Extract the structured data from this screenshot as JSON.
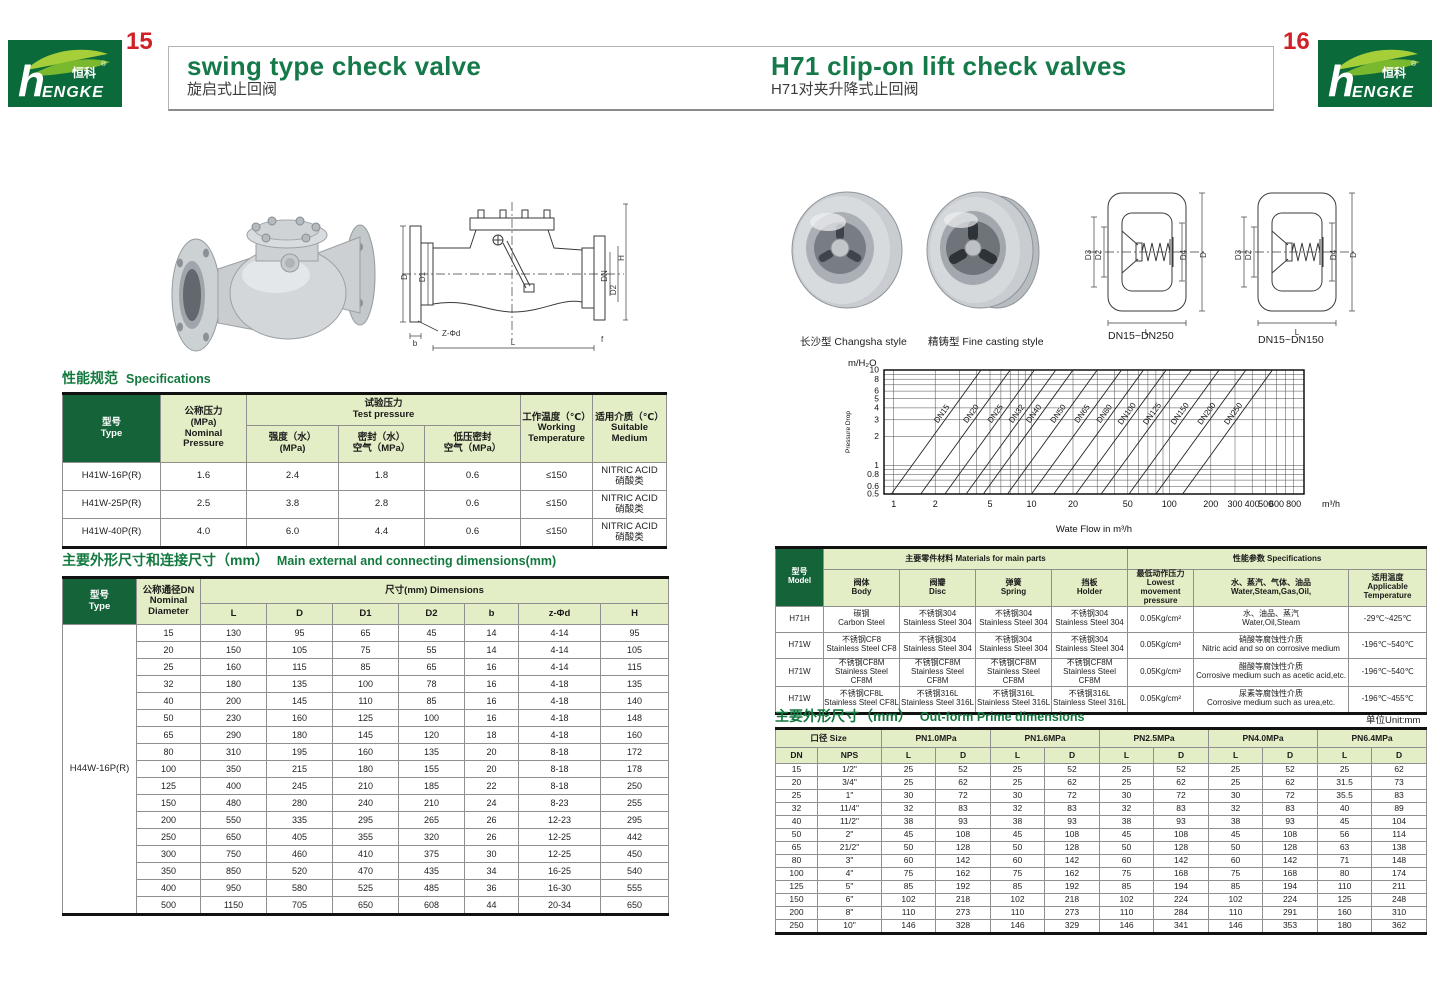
{
  "logo": {
    "zh": "恒科",
    "en_h": "h",
    "en_rest": "ENGKE",
    "reg": "®"
  },
  "colors": {
    "brand_green": "#0a6a3a",
    "title_green": "#15794a",
    "header_dark_green": "#156339",
    "header_light_green": "#e3eec6",
    "page_number_red": "#cf2127"
  },
  "page_left": {
    "page_number": "15",
    "title_en": "swing type check valve",
    "title_zh": "旋启式止回阀",
    "drawing_labels": {
      "d": "D",
      "d1": "D1",
      "dn": "DN",
      "d2": "D2",
      "h": "H",
      "l": "L",
      "b": "b",
      "f": "f",
      "zphid": "Z-Φd"
    },
    "spec": {
      "heading_zh": "性能规范",
      "heading_en": "Specifications",
      "h_type": "型号\nType",
      "h_nominal": "公称压力\n(MPa)\nNominal\nPressure",
      "h_test": "试验压力\nTest pressure",
      "h_strength": "强度（水）\n(MPa)",
      "h_seal": "密封（水）\n空气（MPa）",
      "h_lowseal": "低压密封\n空气（MPa）",
      "h_working": "工作温度（℃）\nWorking\nTemperature",
      "h_medium": "适用介质（℃）\nSuitable\nMedium",
      "rows": [
        [
          "H41W-16P(R)",
          "1.6",
          "2.4",
          "1.8",
          "0.6",
          "≤150",
          "NITRIC ACID\n硝酸类"
        ],
        [
          "H41W-25P(R)",
          "2.5",
          "3.8",
          "2.8",
          "0.6",
          "≤150",
          "NITRIC ACID\n硝酸类"
        ],
        [
          "H41W-40P(R)",
          "4.0",
          "6.0",
          "4.4",
          "0.6",
          "≤150",
          "NITRIC ACID\n硝酸类"
        ]
      ]
    },
    "dims": {
      "heading_zh": "主要外形尺寸和连接尺寸（mm）",
      "heading_en": "Main external and connecting dimensions(mm)",
      "h_type": "型号\nType",
      "h_dn": "公称通径DN\nNominal\nDiameter",
      "h_dims": "尺寸(mm) Dimensions",
      "sub_headers": [
        "L",
        "D",
        "D1",
        "D2",
        "b",
        "z-Φd",
        "H"
      ],
      "type_value": "H44W-16P(R)",
      "rows": [
        [
          "15",
          "130",
          "95",
          "65",
          "45",
          "14",
          "4-14",
          "95"
        ],
        [
          "20",
          "150",
          "105",
          "75",
          "55",
          "14",
          "4-14",
          "105"
        ],
        [
          "25",
          "160",
          "115",
          "85",
          "65",
          "16",
          "4-14",
          "115"
        ],
        [
          "32",
          "180",
          "135",
          "100",
          "78",
          "16",
          "4-18",
          "135"
        ],
        [
          "40",
          "200",
          "145",
          "110",
          "85",
          "16",
          "4-18",
          "140"
        ],
        [
          "50",
          "230",
          "160",
          "125",
          "100",
          "16",
          "4-18",
          "148"
        ],
        [
          "65",
          "290",
          "180",
          "145",
          "120",
          "18",
          "4-18",
          "160"
        ],
        [
          "80",
          "310",
          "195",
          "160",
          "135",
          "20",
          "8-18",
          "172"
        ],
        [
          "100",
          "350",
          "215",
          "180",
          "155",
          "20",
          "8-18",
          "178"
        ],
        [
          "125",
          "400",
          "245",
          "210",
          "185",
          "22",
          "8-18",
          "250"
        ],
        [
          "150",
          "480",
          "280",
          "240",
          "210",
          "24",
          "8-23",
          "255"
        ],
        [
          "200",
          "550",
          "335",
          "295",
          "265",
          "26",
          "12-23",
          "295"
        ],
        [
          "250",
          "650",
          "405",
          "355",
          "320",
          "26",
          "12-25",
          "442"
        ],
        [
          "300",
          "750",
          "460",
          "410",
          "375",
          "30",
          "12-25",
          "450"
        ],
        [
          "350",
          "850",
          "520",
          "470",
          "435",
          "34",
          "16-25",
          "540"
        ],
        [
          "400",
          "950",
          "580",
          "525",
          "485",
          "36",
          "16-30",
          "555"
        ],
        [
          "500",
          "1150",
          "705",
          "650",
          "608",
          "44",
          "20-34",
          "650"
        ]
      ]
    }
  },
  "page_right": {
    "page_number": "16",
    "title_en": "H71 clip-on lift check valves",
    "title_zh": "H71对夹升降式止回阀",
    "captions": {
      "photo1": "长沙型 Changsha style",
      "photo2": "精铸型 Fine casting style",
      "drawing1": "DN15~DN250",
      "drawing2": "DN15~DN150"
    },
    "drawing_labels": {
      "d3": "D3",
      "d2": "D2",
      "d4": "D4",
      "d": "D",
      "l": "L"
    },
    "materials": {
      "h_model": "型号\nModel",
      "h_main": "主要零件材料 Materials for main parts",
      "h_spec": "性能参数 Specifications",
      "h_body": "阀体\nBody",
      "h_disc": "阀瓣\nDisc",
      "h_spring": "弹簧\nSpring",
      "h_holder": "挡板\nHolder",
      "h_pressure": "最低动作压力\nLowest movement\npressure",
      "h_medium": "水、蒸汽、气体、油品\nWater,Steam,Gas,Oil,",
      "h_temp": "适用温度\nApplicable\nTemperature",
      "rows": [
        [
          "H71H",
          "碳钢\nCarbon Steel",
          "不锈钢304\nStainless Steel 304",
          "不锈钢304\nStainless Steel 304",
          "不锈钢304\nStainless Steel 304",
          "0.05Kg/cm²",
          "水、油品、蒸汽\nWater,Oil,Steam",
          "-29℃~425℃"
        ],
        [
          "H71W",
          "不锈钢CF8\nStainless Steel CF8",
          "不锈钢304\nStainless Steel 304",
          "不锈钢304\nStainless Steel 304",
          "不锈钢304\nStainless Steel 304",
          "0.05Kg/cm²",
          "硝酸等腐蚀性介质\nNitric acid and so on corrosive medium",
          "-196℃~540℃"
        ],
        [
          "H71W",
          "不锈钢CF8M\nStainless Steel CF8M",
          "不锈钢CF8M\nStainless Steel CF8M",
          "不锈钢CF8M\nStainless Steel CF8M",
          "不锈钢CF8M\nStainless Steel CF8M",
          "0.05Kg/cm²",
          "醋酸等腐蚀性介质\nCorrosive medium such as acetic acid,etc.",
          "-196℃~540℃"
        ],
        [
          "H71W",
          "不锈钢CF8L\nStainless Steel CF8L",
          "不锈钢316L\nStainless Steel 316L",
          "不锈钢316L\nStainless Steel 316L",
          "不锈钢316L\nStainless Steel 316L",
          "0.05Kg/cm²",
          "尿素等腐蚀性介质\nCorrosive medium such as urea,etc.",
          "-196℃~455℃"
        ]
      ]
    },
    "outform": {
      "heading_zh": "主要外形尺寸（mm）",
      "heading_en": "Out-form Prime dimensions",
      "unit_note": "单位Unit:mm",
      "h_size": "口径 Size",
      "h_dn": "DN",
      "h_nps": "NPS",
      "h_l": "L",
      "h_d": "D",
      "h_pn": [
        "PN1.0MPa",
        "PN1.6MPa",
        "PN2.5MPa",
        "PN4.0MPa",
        "PN6.4MPa"
      ],
      "rows": [
        [
          "15",
          "1/2\"",
          "25",
          "52",
          "25",
          "52",
          "25",
          "52",
          "25",
          "52",
          "25",
          "62"
        ],
        [
          "20",
          "3/4\"",
          "25",
          "62",
          "25",
          "62",
          "25",
          "62",
          "25",
          "62",
          "31.5",
          "73"
        ],
        [
          "25",
          "1\"",
          "30",
          "72",
          "30",
          "72",
          "30",
          "72",
          "30",
          "72",
          "35.5",
          "83"
        ],
        [
          "32",
          "11/4\"",
          "32",
          "83",
          "32",
          "83",
          "32",
          "83",
          "32",
          "83",
          "40",
          "89"
        ],
        [
          "40",
          "11/2\"",
          "38",
          "93",
          "38",
          "93",
          "38",
          "93",
          "38",
          "93",
          "45",
          "104"
        ],
        [
          "50",
          "2\"",
          "45",
          "108",
          "45",
          "108",
          "45",
          "108",
          "45",
          "108",
          "56",
          "114"
        ],
        [
          "65",
          "21/2\"",
          "50",
          "128",
          "50",
          "128",
          "50",
          "128",
          "50",
          "128",
          "63",
          "138"
        ],
        [
          "80",
          "3\"",
          "60",
          "142",
          "60",
          "142",
          "60",
          "142",
          "60",
          "142",
          "71",
          "148"
        ],
        [
          "100",
          "4\"",
          "75",
          "162",
          "75",
          "162",
          "75",
          "168",
          "75",
          "168",
          "80",
          "174"
        ],
        [
          "125",
          "5\"",
          "85",
          "192",
          "85",
          "192",
          "85",
          "194",
          "85",
          "194",
          "110",
          "211"
        ],
        [
          "150",
          "6\"",
          "102",
          "218",
          "102",
          "218",
          "102",
          "224",
          "102",
          "224",
          "125",
          "248"
        ],
        [
          "200",
          "8\"",
          "110",
          "273",
          "110",
          "273",
          "110",
          "284",
          "110",
          "291",
          "160",
          "310"
        ],
        [
          "250",
          "10\"",
          "146",
          "328",
          "146",
          "329",
          "146",
          "341",
          "146",
          "353",
          "180",
          "362"
        ]
      ]
    }
  },
  "chart_data": {
    "type": "line",
    "title": "",
    "xlabel": "Wate Flow in m³/h",
    "ylabel": "Pressure Drop",
    "y_unit": "m/H₂O",
    "x_unit": "m³/h",
    "x_scale": "log",
    "y_scale": "log",
    "xlim": [
      0.85,
      950
    ],
    "ylim": [
      0.5,
      10
    ],
    "x_ticks": [
      1,
      2,
      5,
      10,
      20,
      50,
      100,
      200,
      300,
      400,
      500,
      600,
      800
    ],
    "y_ticks": [
      10,
      8,
      6,
      5,
      4,
      3,
      2,
      1,
      0.8,
      0.6,
      0.5
    ],
    "grid_x": [
      1,
      2,
      3,
      4,
      5,
      6,
      7,
      8,
      9,
      10,
      20,
      30,
      40,
      50,
      60,
      70,
      80,
      90,
      100,
      200,
      300,
      400,
      500,
      600,
      700,
      800
    ],
    "grid_y": [
      0.5,
      0.6,
      0.7,
      0.8,
      0.9,
      1,
      2,
      3,
      4,
      5,
      6,
      7,
      8,
      9,
      10
    ],
    "series": [
      {
        "name": "DN15",
        "points": [
          [
            0.96,
            0.5
          ],
          [
            4.3,
            10
          ]
        ]
      },
      {
        "name": "DN20",
        "points": [
          [
            1.57,
            0.5
          ],
          [
            7,
            10
          ]
        ]
      },
      {
        "name": "DN25",
        "points": [
          [
            2.35,
            0.5
          ],
          [
            10.5,
            10
          ]
        ]
      },
      {
        "name": "DN32",
        "points": [
          [
            3.35,
            0.5
          ],
          [
            15,
            10
          ]
        ]
      },
      {
        "name": "DN40",
        "points": [
          [
            4.47,
            0.5
          ],
          [
            20,
            10
          ]
        ]
      },
      {
        "name": "DN50",
        "points": [
          [
            6.7,
            0.5
          ],
          [
            30,
            10
          ]
        ]
      },
      {
        "name": "DN65",
        "points": [
          [
            10,
            0.5
          ],
          [
            45,
            10
          ]
        ]
      },
      {
        "name": "DN80",
        "points": [
          [
            14.5,
            0.5
          ],
          [
            65,
            10
          ]
        ]
      },
      {
        "name": "DN100",
        "points": [
          [
            21,
            0.5
          ],
          [
            95,
            10
          ]
        ]
      },
      {
        "name": "DN125",
        "points": [
          [
            32,
            0.5
          ],
          [
            145,
            10
          ]
        ]
      },
      {
        "name": "DN150",
        "points": [
          [
            51,
            0.5
          ],
          [
            230,
            10
          ]
        ]
      },
      {
        "name": "DN200",
        "points": [
          [
            80,
            0.5
          ],
          [
            360,
            10
          ]
        ]
      },
      {
        "name": "DN250",
        "points": [
          [
            125,
            0.5
          ],
          [
            560,
            10
          ]
        ]
      }
    ]
  }
}
